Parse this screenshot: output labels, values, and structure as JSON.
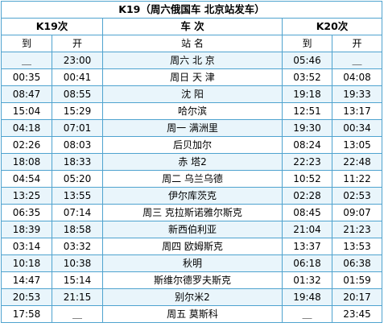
{
  "table": {
    "title": "K19（周六俄国车 北京站发车）",
    "headers": {
      "train_left": "K19次",
      "station_col": "车 次",
      "train_right": "K20次"
    },
    "subheaders": {
      "arrive_left": "到",
      "depart_left": "开",
      "station": "站 名",
      "arrive_right": "到",
      "depart_right": "开"
    },
    "rows": [
      {
        "k19_arrive": "＿",
        "k19_depart": "23:00",
        "station": "周六 北 京",
        "k20_arrive": "05:46",
        "k20_depart": "＿"
      },
      {
        "k19_arrive": "00:35",
        "k19_depart": "00:41",
        "station": "周日 天 津",
        "k20_arrive": "03:52",
        "k20_depart": "04:08"
      },
      {
        "k19_arrive": "08:47",
        "k19_depart": "08:55",
        "station": "沈 阳",
        "k20_arrive": "19:18",
        "k20_depart": "19:33"
      },
      {
        "k19_arrive": "15:04",
        "k19_depart": "15:29",
        "station": "哈尔滨",
        "k20_arrive": "12:51",
        "k20_depart": "13:17"
      },
      {
        "k19_arrive": "04:18",
        "k19_depart": "07:01",
        "station": "周一 满洲里",
        "k20_arrive": "19:30",
        "k20_depart": "00:34"
      },
      {
        "k19_arrive": "02:26",
        "k19_depart": "08:03",
        "station": "后贝加尔",
        "k20_arrive": "08:24",
        "k20_depart": "13:05"
      },
      {
        "k19_arrive": "18:08",
        "k19_depart": "18:33",
        "station": "赤 塔2",
        "k20_arrive": "22:23",
        "k20_depart": "22:48"
      },
      {
        "k19_arrive": "04:54",
        "k19_depart": "05:20",
        "station": "周二 乌兰乌德",
        "k20_arrive": "10:52",
        "k20_depart": "11:22"
      },
      {
        "k19_arrive": "13:25",
        "k19_depart": "13:55",
        "station": "伊尔库茨克",
        "k20_arrive": "02:28",
        "k20_depart": "02:53"
      },
      {
        "k19_arrive": "06:35",
        "k19_depart": "07:14",
        "station": "周三 克拉斯诺雅尔斯克",
        "k20_arrive": "08:45",
        "k20_depart": "09:07"
      },
      {
        "k19_arrive": "18:39",
        "k19_depart": "18:58",
        "station": "新西伯利亚",
        "k20_arrive": "21:04",
        "k20_depart": "21:23"
      },
      {
        "k19_arrive": "03:14",
        "k19_depart": "03:32",
        "station": "周四 欧姆斯克",
        "k20_arrive": "13:37",
        "k20_depart": "13:53"
      },
      {
        "k19_arrive": "10:18",
        "k19_depart": "10:38",
        "station": "秋明",
        "k20_arrive": "06:18",
        "k20_depart": "06:38"
      },
      {
        "k19_arrive": "14:47",
        "k19_depart": "15:14",
        "station": "斯维尔德罗夫斯克",
        "k20_arrive": "01:32",
        "k20_depart": "01:59"
      },
      {
        "k19_arrive": "20:53",
        "k19_depart": "21:15",
        "station": "别尔米2",
        "k20_arrive": "19:48",
        "k20_depart": "20:17"
      },
      {
        "k19_arrive": "17:58",
        "k19_depart": "＿",
        "station": "周五 莫斯科",
        "k20_arrive": "＿",
        "k20_depart": "23:45"
      }
    ]
  }
}
